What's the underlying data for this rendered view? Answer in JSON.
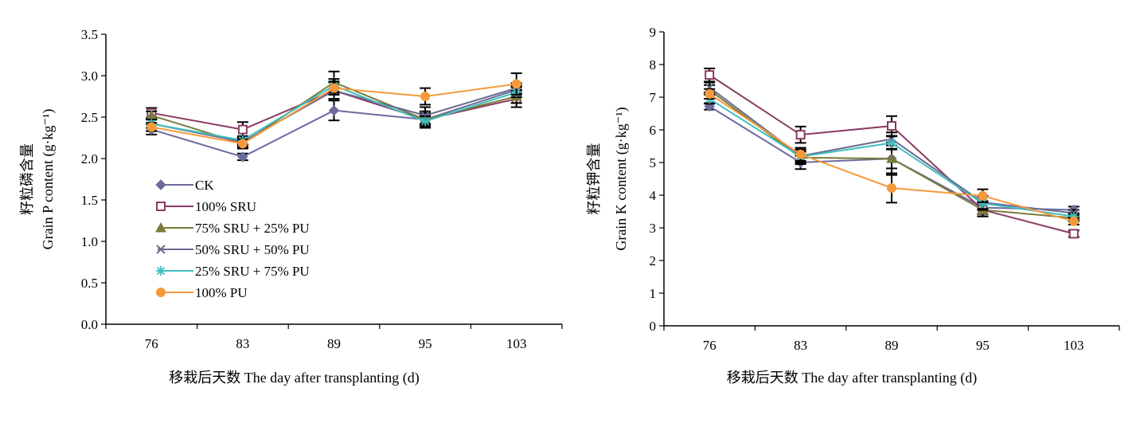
{
  "colors": {
    "axis": "#000000",
    "error_bar": "#000000"
  },
  "chart_data": [
    {
      "type": "line",
      "title": "",
      "xlabel": "移栽后天数 The day after transplanting (d)",
      "ylabel_cn": "籽粒磷含量",
      "ylabel_en": "Grain P content (g·kg⁻¹)",
      "categories": [
        "76",
        "83",
        "89",
        "95",
        "103"
      ],
      "ylim": [
        0,
        3.5
      ],
      "yticks": [
        "0.0",
        "0.5",
        "1.0",
        "1.5",
        "2.0",
        "2.5",
        "3.0",
        "3.5"
      ],
      "grid": false,
      "legend_position": "lower-left",
      "series": [
        {
          "name": "CK",
          "color": "#6b6b9e",
          "marker": "diamond",
          "values": [
            2.35,
            2.02,
            2.58,
            2.47,
            2.83
          ],
          "errors": [
            0.06,
            0.04,
            0.12,
            0.08,
            0.05
          ]
        },
        {
          "name": "100% SRU",
          "color": "#8b3a62",
          "marker": "square",
          "values": [
            2.55,
            2.35,
            2.82,
            2.47,
            2.72
          ],
          "errors": [
            0.06,
            0.09,
            0.1,
            0.1,
            0.1
          ]
        },
        {
          "name": "75% SRU + 25% PU",
          "color": "#7a7a3a",
          "marker": "triangle",
          "values": [
            2.52,
            2.18,
            2.92,
            2.47,
            2.75
          ],
          "errors": [
            0.05,
            0.06,
            0.13,
            0.06,
            0.08
          ]
        },
        {
          "name": "50% SRU + 50% PU",
          "color": "#6a6a90",
          "marker": "x",
          "values": [
            2.42,
            2.2,
            2.82,
            2.52,
            2.85
          ],
          "errors": [
            0.05,
            0.05,
            0.1,
            0.1,
            0.06
          ]
        },
        {
          "name": "25% SRU + 75% PU",
          "color": "#3fbfbf",
          "marker": "star",
          "values": [
            2.42,
            2.22,
            2.88,
            2.45,
            2.8
          ],
          "errors": [
            0.05,
            0.05,
            0.08,
            0.06,
            0.06
          ]
        },
        {
          "name": "100% PU",
          "color": "#f59a3c",
          "marker": "circle",
          "values": [
            2.38,
            2.18,
            2.85,
            2.75,
            2.9
          ],
          "errors": [
            0.05,
            0.05,
            0.08,
            0.1,
            0.13
          ]
        }
      ]
    },
    {
      "type": "line",
      "title": "",
      "xlabel": "移栽后天数 The day after transplanting (d)",
      "ylabel_cn": "籽粒钾含量",
      "ylabel_en": "Grain K content (g·kg⁻¹)",
      "categories": [
        "76",
        "83",
        "89",
        "95",
        "103"
      ],
      "ylim": [
        0,
        9
      ],
      "yticks": [
        "0",
        "1",
        "2",
        "3",
        "4",
        "5",
        "6",
        "7",
        "8",
        "9"
      ],
      "grid": false,
      "legend_position": "none",
      "series": [
        {
          "name": "CK",
          "color": "#6b6b9e",
          "marker": "diamond",
          "values": [
            6.72,
            5.0,
            5.12,
            3.62,
            3.55
          ],
          "errors": [
            0.1,
            0.2,
            0.3,
            0.2,
            0.1
          ]
        },
        {
          "name": "100% SRU",
          "color": "#8b3a62",
          "marker": "square",
          "values": [
            7.68,
            5.85,
            6.12,
            3.55,
            2.82
          ],
          "errors": [
            0.2,
            0.25,
            0.3,
            0.2,
            0.1
          ]
        },
        {
          "name": "75% SRU + 25% PU",
          "color": "#7a7a3a",
          "marker": "triangle",
          "values": [
            7.22,
            5.15,
            5.12,
            3.55,
            3.3
          ],
          "errors": [
            0.15,
            0.2,
            0.5,
            0.2,
            0.1
          ]
        },
        {
          "name": "50% SRU + 50% PU",
          "color": "#6a6a90",
          "marker": "x",
          "values": [
            7.3,
            5.2,
            5.72,
            3.78,
            3.45
          ],
          "errors": [
            0.15,
            0.2,
            0.2,
            0.2,
            0.1
          ]
        },
        {
          "name": "25% SRU + 75% PU",
          "color": "#3fbfbf",
          "marker": "star",
          "values": [
            6.95,
            5.18,
            5.6,
            3.75,
            3.35
          ],
          "errors": [
            0.15,
            0.15,
            0.2,
            0.2,
            0.1
          ]
        },
        {
          "name": "100% PU",
          "color": "#f59a3c",
          "marker": "circle",
          "values": [
            7.1,
            5.25,
            4.22,
            3.98,
            3.2
          ],
          "errors": [
            0.15,
            0.2,
            0.45,
            0.2,
            0.1
          ]
        }
      ]
    }
  ]
}
